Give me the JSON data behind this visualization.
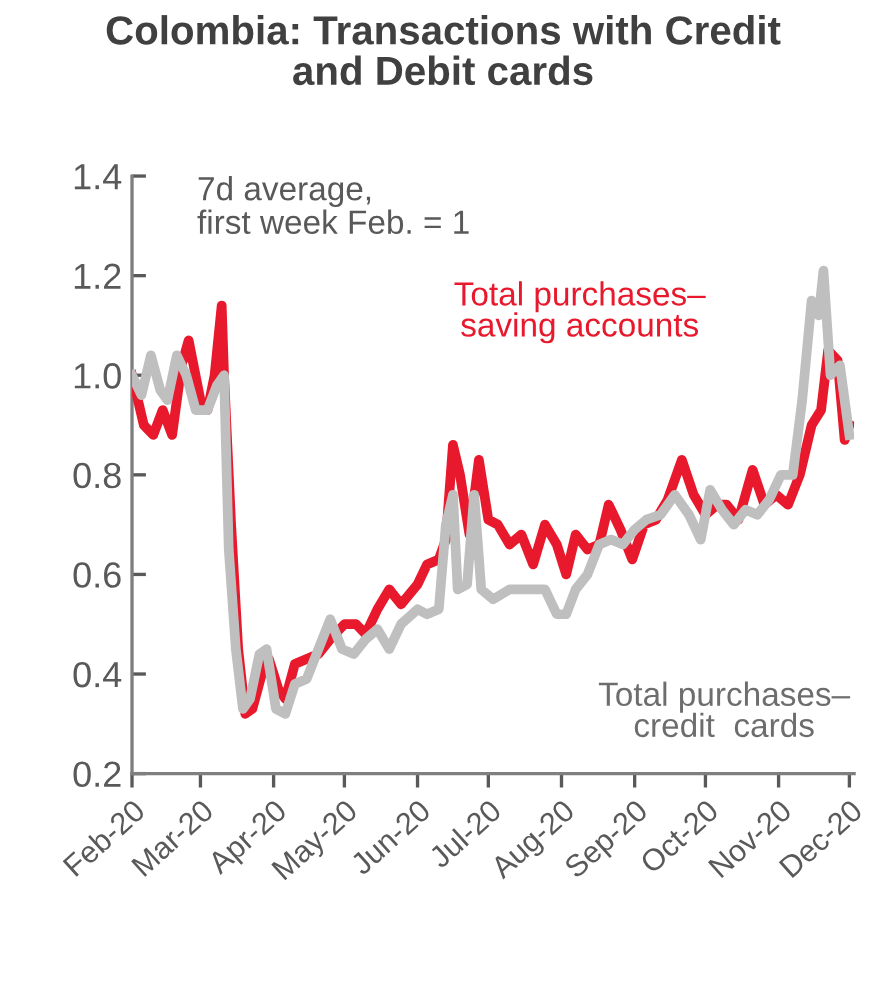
{
  "chart_data": {
    "type": "line",
    "title": "Colombia: Transactions with Credit\nand Debit cards",
    "annotations": [
      "7d average,\nfirst week Feb. = 1"
    ],
    "xlim": [
      "2020-02-01",
      "2020-12-03"
    ],
    "xticks": [
      {
        "value": "2020-02-01",
        "label": "Feb-20"
      },
      {
        "value": "2020-03-01",
        "label": "Mar-20"
      },
      {
        "value": "2020-04-01",
        "label": "Apr-20"
      },
      {
        "value": "2020-05-01",
        "label": "May-20"
      },
      {
        "value": "2020-06-01",
        "label": "Jun-20"
      },
      {
        "value": "2020-07-01",
        "label": "Jul-20"
      },
      {
        "value": "2020-08-01",
        "label": "Aug-20"
      },
      {
        "value": "2020-09-01",
        "label": "Sep-20"
      },
      {
        "value": "2020-10-01",
        "label": "Oct-20"
      },
      {
        "value": "2020-11-01",
        "label": "Nov-20"
      },
      {
        "value": "2020-12-01",
        "label": "Dec-20"
      }
    ],
    "ylim": [
      0.2,
      1.4
    ],
    "yticks": [
      {
        "value": 0.2,
        "label": "0.2"
      },
      {
        "value": 0.4,
        "label": "0.4"
      },
      {
        "value": 0.6,
        "label": "0.6"
      },
      {
        "value": 0.8,
        "label": "0.8"
      },
      {
        "value": 1.0,
        "label": "1.0"
      },
      {
        "value": 1.2,
        "label": "1.2"
      },
      {
        "value": 1.4,
        "label": "1.4"
      }
    ],
    "grid": false,
    "legend": false,
    "marker": "none",
    "line_style": "solid",
    "series": [
      {
        "name": "Total purchases–\nsaving accounts",
        "color": "#e8192c",
        "x": [
          "2020-02-01",
          "2020-02-06",
          "2020-02-10",
          "2020-02-14",
          "2020-02-18",
          "2020-02-22",
          "2020-02-25",
          "2020-03-01",
          "2020-03-04",
          "2020-03-07",
          "2020-03-10",
          "2020-03-11",
          "2020-03-14",
          "2020-03-17",
          "2020-03-20",
          "2020-03-23",
          "2020-03-27",
          "2020-03-30",
          "2020-04-03",
          "2020-04-06",
          "2020-04-10",
          "2020-04-15",
          "2020-04-20",
          "2020-04-25",
          "2020-05-01",
          "2020-05-06",
          "2020-05-10",
          "2020-05-15",
          "2020-05-20",
          "2020-05-25",
          "2020-06-01",
          "2020-06-05",
          "2020-06-10",
          "2020-06-13",
          "2020-06-16",
          "2020-06-19",
          "2020-06-23",
          "2020-06-27",
          "2020-07-01",
          "2020-07-05",
          "2020-07-10",
          "2020-07-15",
          "2020-07-20",
          "2020-07-25",
          "2020-07-30",
          "2020-08-03",
          "2020-08-07",
          "2020-08-12",
          "2020-08-17",
          "2020-08-21",
          "2020-08-26",
          "2020-08-31",
          "2020-09-05",
          "2020-09-10",
          "2020-09-15",
          "2020-09-21",
          "2020-09-26",
          "2020-10-01",
          "2020-10-06",
          "2020-10-10",
          "2020-10-15",
          "2020-10-21",
          "2020-10-26",
          "2020-10-31",
          "2020-11-05",
          "2020-11-10",
          "2020-11-15",
          "2020-11-19",
          "2020-11-22",
          "2020-11-26",
          "2020-11-29",
          "2020-12-01"
        ],
        "values": [
          1.0,
          0.9,
          0.88,
          0.93,
          0.88,
          1.02,
          1.07,
          0.95,
          0.93,
          1.0,
          1.14,
          1.0,
          0.7,
          0.45,
          0.32,
          0.33,
          0.4,
          0.43,
          0.37,
          0.35,
          0.42,
          0.43,
          0.44,
          0.47,
          0.5,
          0.5,
          0.48,
          0.53,
          0.57,
          0.54,
          0.58,
          0.62,
          0.63,
          0.67,
          0.86,
          0.8,
          0.68,
          0.83,
          0.71,
          0.7,
          0.66,
          0.68,
          0.62,
          0.7,
          0.66,
          0.6,
          0.68,
          0.65,
          0.66,
          0.74,
          0.69,
          0.63,
          0.7,
          0.71,
          0.75,
          0.83,
          0.76,
          0.72,
          0.74,
          0.74,
          0.71,
          0.81,
          0.74,
          0.76,
          0.74,
          0.8,
          0.9,
          0.93,
          1.05,
          1.03,
          0.87,
          0.9
        ]
      },
      {
        "name": "Total purchases–\ncredit  cards",
        "color": "#bfbfbf",
        "x": [
          "2020-02-01",
          "2020-02-05",
          "2020-02-09",
          "2020-02-13",
          "2020-02-16",
          "2020-02-20",
          "2020-02-24",
          "2020-02-28",
          "2020-03-04",
          "2020-03-08",
          "2020-03-11",
          "2020-03-13",
          "2020-03-16",
          "2020-03-19",
          "2020-03-22",
          "2020-03-26",
          "2020-03-29",
          "2020-04-02",
          "2020-04-06",
          "2020-04-10",
          "2020-04-15",
          "2020-04-20",
          "2020-04-25",
          "2020-04-30",
          "2020-05-05",
          "2020-05-10",
          "2020-05-15",
          "2020-05-20",
          "2020-05-25",
          "2020-06-01",
          "2020-06-05",
          "2020-06-10",
          "2020-06-13",
          "2020-06-16",
          "2020-06-18",
          "2020-06-22",
          "2020-06-25",
          "2020-06-28",
          "2020-07-03",
          "2020-07-10",
          "2020-07-15",
          "2020-07-20",
          "2020-07-25",
          "2020-07-30",
          "2020-08-03",
          "2020-08-07",
          "2020-08-12",
          "2020-08-17",
          "2020-08-22",
          "2020-08-27",
          "2020-09-01",
          "2020-09-06",
          "2020-09-12",
          "2020-09-18",
          "2020-09-24",
          "2020-09-29",
          "2020-10-03",
          "2020-10-08",
          "2020-10-13",
          "2020-10-18",
          "2020-10-23",
          "2020-10-28",
          "2020-11-02",
          "2020-11-07",
          "2020-11-11",
          "2020-11-15",
          "2020-11-18",
          "2020-11-20",
          "2020-11-23",
          "2020-11-27",
          "2020-12-01"
        ],
        "values": [
          1.0,
          0.96,
          1.04,
          0.97,
          0.95,
          1.04,
          1.0,
          0.93,
          0.93,
          0.98,
          1.0,
          0.65,
          0.45,
          0.33,
          0.35,
          0.44,
          0.45,
          0.33,
          0.32,
          0.38,
          0.39,
          0.45,
          0.51,
          0.45,
          0.44,
          0.47,
          0.49,
          0.45,
          0.5,
          0.53,
          0.52,
          0.53,
          0.7,
          0.76,
          0.57,
          0.58,
          0.76,
          0.57,
          0.55,
          0.57,
          0.57,
          0.57,
          0.57,
          0.52,
          0.52,
          0.57,
          0.6,
          0.66,
          0.67,
          0.66,
          0.69,
          0.71,
          0.72,
          0.76,
          0.72,
          0.67,
          0.77,
          0.73,
          0.7,
          0.73,
          0.72,
          0.75,
          0.8,
          0.8,
          0.95,
          1.15,
          1.12,
          1.21,
          1.0,
          1.02,
          0.88
        ]
      }
    ]
  }
}
